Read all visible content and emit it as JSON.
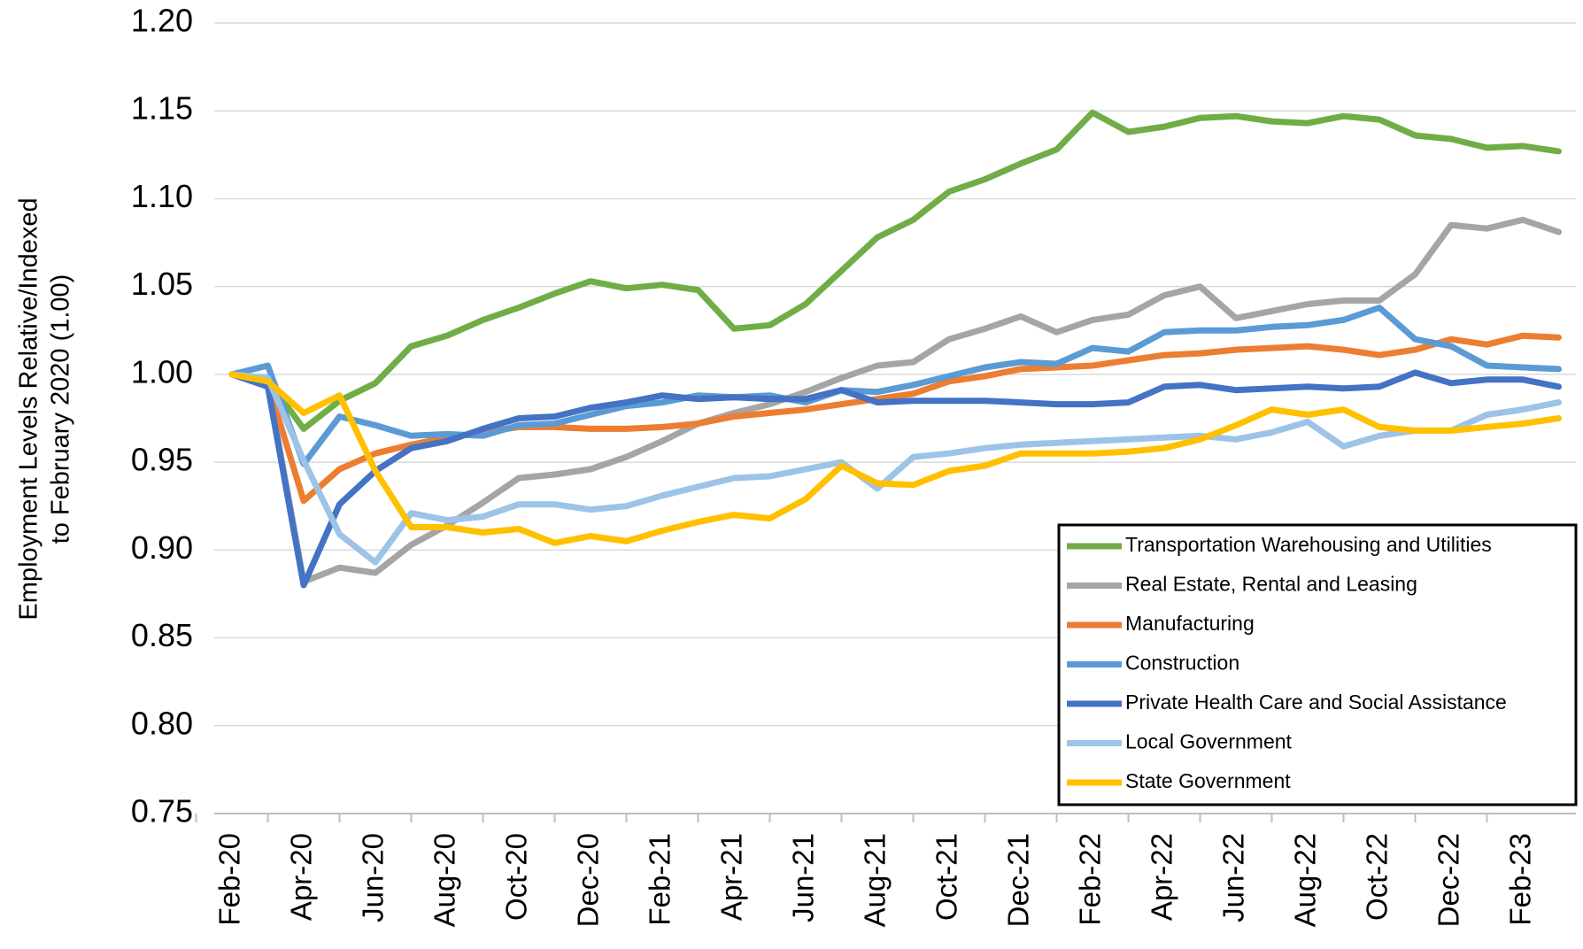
{
  "chart_data": {
    "type": "line",
    "y_label": [
      "Employment Levels Relative/Indexed",
      "to February 2020 (1.00)"
    ],
    "categories": [
      "Feb-20",
      null,
      "Apr-20",
      null,
      "Jun-20",
      null,
      "Aug-20",
      null,
      "Oct-20",
      null,
      "Dec-20",
      null,
      "Feb-21",
      null,
      "Apr-21",
      null,
      "Jun-21",
      null,
      "Aug-21",
      null,
      "Oct-21",
      null,
      "Dec-21",
      null,
      "Feb-22",
      null,
      "Apr-22",
      null,
      "Jun-22",
      null,
      "Aug-22",
      null,
      "Oct-22",
      null,
      "Dec-22",
      null,
      "Feb-23",
      null
    ],
    "ylim": [
      0.75,
      1.2
    ],
    "yticks": [
      0.75,
      {
        "value": 0.8,
        "label": "0.80"
      },
      0.85,
      {
        "value": 0.9,
        "label": "0.90"
      },
      0.95,
      {
        "value": 1,
        "label": "1.00"
      },
      1.05,
      {
        "value": 1.1,
        "label": "1.10"
      },
      1.15,
      {
        "value": 1.2,
        "label": "1.20"
      }
    ],
    "grid": true,
    "legend": "lower right",
    "series": [
      {
        "name": "Transportation Warehousing and Utilities",
        "color": "#70ad47",
        "values": [
          1.0,
          0.997,
          0.969,
          0.985,
          0.995,
          1.016,
          1.022,
          1.031,
          1.038,
          1.046,
          1.053,
          1.049,
          1.051,
          1.048,
          1.026,
          1.028,
          1.04,
          1.059,
          1.078,
          1.088,
          1.104,
          1.111,
          1.12,
          1.128,
          1.149,
          1.138,
          1.141,
          1.146,
          1.147,
          1.144,
          1.143,
          1.147,
          1.145,
          1.136,
          1.134,
          1.129,
          1.13,
          1.127
        ]
      },
      {
        "name": "Real Estate, Rental and Leasing",
        "color": "#a5a5a5",
        "values": [
          1.0,
          0.995,
          0.882,
          0.89,
          0.887,
          0.903,
          0.914,
          0.927,
          0.941,
          0.943,
          0.946,
          0.953,
          0.962,
          0.972,
          0.978,
          0.983,
          0.99,
          0.998,
          1.005,
          1.007,
          1.02,
          1.026,
          1.033,
          1.024,
          1.031,
          1.034,
          1.045,
          1.05,
          1.032,
          1.036,
          1.04,
          1.042,
          1.042,
          1.057,
          1.085,
          1.083,
          1.088,
          1.081
        ]
      },
      {
        "name": "Manufacturing",
        "color": "#ed7d31",
        "values": [
          1.0,
          0.995,
          0.928,
          0.946,
          0.955,
          0.96,
          0.964,
          0.967,
          0.97,
          0.97,
          0.969,
          0.969,
          0.97,
          0.972,
          0.976,
          0.978,
          0.98,
          0.983,
          0.986,
          0.989,
          0.996,
          0.999,
          1.003,
          1.004,
          1.005,
          1.008,
          1.011,
          1.012,
          1.014,
          1.015,
          1.016,
          1.014,
          1.011,
          1.014,
          1.02,
          1.017,
          1.022,
          1.021
        ]
      },
      {
        "name": "Construction",
        "color": "#5b9bd5",
        "values": [
          1.0,
          1.005,
          0.949,
          0.976,
          0.971,
          0.965,
          0.966,
          0.965,
          0.971,
          0.972,
          0.977,
          0.982,
          0.984,
          0.988,
          0.987,
          0.988,
          0.984,
          0.991,
          0.99,
          0.994,
          0.999,
          1.004,
          1.007,
          1.006,
          1.015,
          1.013,
          1.024,
          1.025,
          1.025,
          1.027,
          1.028,
          1.031,
          1.038,
          1.02,
          1.016,
          1.005,
          1.004,
          1.003
        ]
      },
      {
        "name": "Private Health Care and Social Assistance",
        "color": "#4472c4",
        "values": [
          1.0,
          0.993,
          0.88,
          0.926,
          0.945,
          0.958,
          0.962,
          0.969,
          0.975,
          0.976,
          0.981,
          0.984,
          0.988,
          0.986,
          0.987,
          0.986,
          0.986,
          0.991,
          0.984,
          0.985,
          0.985,
          0.985,
          0.984,
          0.983,
          0.983,
          0.984,
          0.993,
          0.994,
          0.991,
          0.992,
          0.993,
          0.992,
          0.993,
          1.001,
          0.995,
          0.997,
          0.997,
          0.993
        ]
      },
      {
        "name": "Local Government",
        "color": "#9dc3e6",
        "values": [
          1.0,
          0.998,
          0.951,
          0.909,
          0.893,
          0.921,
          0.917,
          0.919,
          0.926,
          0.926,
          0.923,
          0.925,
          0.931,
          0.936,
          0.941,
          0.942,
          0.946,
          0.95,
          0.935,
          0.953,
          0.955,
          0.958,
          0.96,
          0.961,
          0.962,
          0.963,
          0.964,
          0.965,
          0.963,
          0.967,
          0.973,
          0.959,
          0.965,
          0.968,
          0.968,
          0.977,
          0.98,
          0.984
        ]
      },
      {
        "name": "State Government",
        "color": "#ffc000",
        "values": [
          1.0,
          0.996,
          0.978,
          0.988,
          0.945,
          0.913,
          0.913,
          0.91,
          0.912,
          0.904,
          0.908,
          0.905,
          0.911,
          0.916,
          0.92,
          0.918,
          0.929,
          0.948,
          0.938,
          0.937,
          0.945,
          0.948,
          0.955,
          0.955,
          0.955,
          0.956,
          0.958,
          0.963,
          0.971,
          0.98,
          0.977,
          0.98,
          0.97,
          0.968,
          0.968,
          0.97,
          0.972,
          0.975
        ]
      }
    ]
  }
}
